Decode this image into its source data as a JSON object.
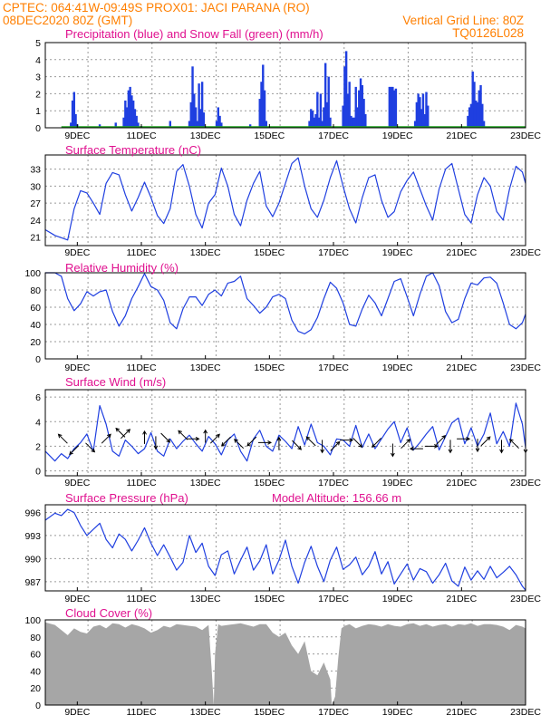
{
  "header": {
    "left_line1": "CPTEC:   064:41W-09:49S   PROX01: JACI PARANA (RO)",
    "left_line2": "08DEC2020 80Z (GMT)",
    "right_line2": "Vertical Grid Line: 80Z",
    "right_line3": "TQ0126L028"
  },
  "colors": {
    "header": "#ff7f00",
    "panel_title": "#e0108f",
    "series": "#1f3fe0",
    "snow": "#1aa01a",
    "cloud": "#a6a6a6",
    "grid": "#9a9a9a"
  },
  "x_dates": [
    "9DEC",
    "11DEC",
    "13DEC",
    "15DEC",
    "17DEC",
    "19DEC",
    "21DEC",
    "23DEC"
  ],
  "x_date_days": [
    9,
    11,
    13,
    15,
    17,
    19,
    21,
    23
  ],
  "chart_data": [
    {
      "type": "bar",
      "title": "Precipitation (blue) and Snow Fall (green) (mm/h)",
      "ylim": [
        0,
        5
      ],
      "yticks": [
        0,
        1,
        2,
        3,
        4,
        5
      ],
      "series": [
        {
          "name": "Precipitation",
          "x": [
            8.8,
            8.85,
            8.9,
            8.95,
            9.0,
            9.7,
            10.2,
            10.45,
            10.5,
            10.55,
            10.6,
            10.65,
            10.7,
            10.75,
            10.8,
            10.85,
            10.9,
            11.0,
            11.9,
            12.5,
            12.55,
            12.6,
            12.65,
            12.7,
            12.75,
            12.8,
            12.85,
            12.9,
            12.95,
            13.35,
            13.4,
            13.45,
            13.5,
            14.4,
            14.7,
            14.75,
            14.8,
            14.85,
            14.9,
            16.25,
            16.3,
            16.35,
            16.4,
            16.45,
            16.5,
            16.55,
            16.6,
            16.65,
            16.7,
            16.75,
            16.8,
            16.85,
            16.9,
            17.3,
            17.35,
            17.4,
            17.45,
            17.5,
            17.55,
            17.6,
            17.65,
            17.7,
            17.75,
            17.8,
            17.85,
            17.9,
            17.95,
            18.0,
            18.75,
            18.8,
            18.85,
            18.9,
            18.95,
            19.55,
            19.6,
            19.65,
            19.7,
            19.75,
            19.8,
            19.85,
            19.9,
            19.95,
            21.2,
            21.25,
            21.3,
            21.35,
            21.4,
            21.45,
            21.5,
            21.55,
            21.6,
            21.65,
            21.7
          ],
          "values": [
            0.3,
            1.6,
            2.1,
            0.8,
            0.2,
            0.2,
            0.3,
            0.6,
            1.6,
            1.2,
            2.2,
            2.4,
            1.9,
            1.6,
            1.1,
            0.7,
            0.3,
            0.1,
            0.4,
            0.4,
            1.5,
            3.6,
            2.0,
            1.2,
            0.4,
            2.6,
            1.1,
            2.7,
            0.9,
            0.4,
            1.2,
            0.7,
            0.3,
            0.2,
            1.7,
            2.7,
            3.7,
            2.2,
            0.4,
            0.4,
            1.1,
            1.0,
            0.6,
            0.8,
            2.1,
            0.6,
            2.0,
            0.4,
            1.2,
            3.8,
            1.5,
            3.0,
            0.6,
            1.3,
            3.6,
            4.5,
            2.0,
            2.7,
            0.7,
            0.6,
            0.6,
            2.4,
            1.2,
            2.2,
            2.9,
            2.5,
            1.7,
            0.8,
            2.4,
            2.4,
            2.4,
            2.2,
            2.3,
            0.4,
            1.5,
            2.0,
            1.8,
            1.1,
            2.0,
            0.8,
            2.1,
            1.3,
            0.7,
            1.2,
            1.4,
            3.3,
            2.7,
            1.6,
            1.5,
            2.2,
            2.5,
            1.4,
            0.4
          ]
        },
        {
          "name": "Snow Fall",
          "x": [
            8.5,
            23.0
          ],
          "values": [
            0,
            0
          ]
        }
      ]
    },
    {
      "type": "line",
      "title": "Surface Temperature (nC)",
      "ylim": [
        19.5,
        35.5
      ],
      "yticks": [
        21,
        24,
        27,
        30,
        33
      ],
      "x": [
        8.0,
        8.3,
        8.5,
        8.7,
        8.9,
        9.1,
        9.3,
        9.5,
        9.7,
        9.9,
        10.1,
        10.3,
        10.5,
        10.7,
        10.9,
        11.1,
        11.3,
        11.5,
        11.7,
        11.9,
        12.1,
        12.3,
        12.5,
        12.7,
        12.9,
        13.1,
        13.3,
        13.5,
        13.7,
        13.9,
        14.1,
        14.3,
        14.5,
        14.7,
        14.9,
        15.1,
        15.3,
        15.5,
        15.7,
        15.9,
        16.1,
        16.3,
        16.5,
        16.7,
        16.9,
        17.1,
        17.3,
        17.5,
        17.7,
        17.9,
        18.1,
        18.3,
        18.5,
        18.7,
        18.9,
        19.1,
        19.3,
        19.5,
        19.7,
        19.9,
        20.1,
        20.3,
        20.5,
        20.7,
        20.9,
        21.1,
        21.3,
        21.5,
        21.7,
        21.9,
        22.1,
        22.3,
        22.5,
        22.7,
        22.9,
        23.0
      ],
      "values": [
        22.3,
        21.3,
        20.9,
        20.5,
        26.0,
        29.2,
        28.8,
        27.0,
        25.0,
        30.5,
        32.4,
        32.0,
        28.5,
        25.6,
        28.0,
        30.7,
        28.0,
        24.8,
        23.4,
        26.0,
        32.6,
        33.8,
        30.0,
        25.0,
        22.6,
        27.0,
        28.5,
        33.2,
        30.0,
        25.0,
        23.0,
        27.5,
        30.5,
        32.6,
        26.5,
        24.6,
        27.0,
        30.5,
        34.0,
        35.0,
        30.0,
        26.0,
        24.5,
        27.5,
        31.5,
        34.5,
        30.0,
        26.0,
        23.5,
        28.0,
        31.5,
        32.0,
        27.5,
        24.5,
        25.5,
        29.0,
        31.0,
        32.5,
        29.5,
        26.5,
        24.0,
        29.5,
        33.0,
        34.0,
        29.5,
        25.0,
        23.5,
        28.5,
        31.5,
        30.0,
        25.5,
        24.0,
        29.5,
        33.5,
        32.5,
        30.5
      ]
    },
    {
      "type": "line",
      "title": "Relative Humidity (%)",
      "ylim": [
        0,
        100
      ],
      "yticks": [
        0,
        20,
        40,
        60,
        80,
        100
      ],
      "x": [
        8.0,
        8.3,
        8.5,
        8.7,
        8.9,
        9.1,
        9.3,
        9.5,
        9.7,
        9.9,
        10.1,
        10.3,
        10.5,
        10.7,
        10.9,
        11.1,
        11.3,
        11.5,
        11.7,
        11.9,
        12.1,
        12.3,
        12.5,
        12.7,
        12.9,
        13.1,
        13.3,
        13.5,
        13.7,
        13.9,
        14.1,
        14.3,
        14.5,
        14.7,
        14.9,
        15.1,
        15.3,
        15.5,
        15.7,
        15.9,
        16.1,
        16.3,
        16.5,
        16.7,
        16.9,
        17.1,
        17.3,
        17.5,
        17.7,
        17.9,
        18.1,
        18.3,
        18.5,
        18.7,
        18.9,
        19.1,
        19.3,
        19.5,
        19.7,
        19.9,
        20.1,
        20.3,
        20.5,
        20.7,
        20.9,
        21.1,
        21.3,
        21.5,
        21.7,
        21.9,
        22.1,
        22.3,
        22.5,
        22.7,
        22.9,
        23.0
      ],
      "values": [
        100,
        100,
        96,
        70,
        56,
        64,
        78,
        73,
        78,
        80,
        55,
        38,
        50,
        70,
        84,
        99,
        84,
        80,
        68,
        42,
        35,
        58,
        72,
        72,
        62,
        75,
        80,
        73,
        88,
        90,
        96,
        70,
        62,
        53,
        60,
        72,
        75,
        70,
        45,
        32,
        29,
        34,
        48,
        70,
        89,
        82,
        65,
        40,
        38,
        58,
        74,
        65,
        50,
        70,
        90,
        93,
        72,
        50,
        75,
        96,
        100,
        85,
        55,
        42,
        46,
        70,
        88,
        86,
        94,
        95,
        88,
        65,
        40,
        35,
        42,
        52
      ]
    },
    {
      "type": "line",
      "title": "Surface Wind (m/s)",
      "ylim": [
        -0.4,
        6.6
      ],
      "yticks": [
        0,
        2,
        4,
        6
      ],
      "x": [
        8.0,
        8.3,
        8.5,
        8.7,
        8.9,
        9.1,
        9.3,
        9.5,
        9.7,
        9.9,
        10.1,
        10.3,
        10.5,
        10.7,
        10.9,
        11.1,
        11.3,
        11.5,
        11.7,
        11.9,
        12.1,
        12.3,
        12.5,
        12.7,
        12.9,
        13.1,
        13.3,
        13.5,
        13.7,
        13.9,
        14.1,
        14.3,
        14.5,
        14.7,
        14.9,
        15.1,
        15.3,
        15.5,
        15.7,
        15.9,
        16.1,
        16.3,
        16.5,
        16.7,
        16.9,
        17.1,
        17.3,
        17.5,
        17.7,
        17.9,
        18.1,
        18.3,
        18.5,
        18.7,
        18.9,
        19.1,
        19.3,
        19.5,
        19.7,
        19.9,
        20.1,
        20.3,
        20.5,
        20.7,
        20.9,
        21.1,
        21.3,
        21.5,
        21.7,
        21.9,
        22.1,
        22.3,
        22.5,
        22.7,
        22.9,
        23.0
      ],
      "values": [
        1.6,
        0.8,
        1.4,
        1.0,
        1.8,
        2.3,
        3.0,
        1.6,
        5.3,
        3.8,
        1.6,
        1.2,
        2.5,
        2.0,
        1.4,
        1.8,
        3.1,
        1.6,
        1.2,
        2.6,
        1.8,
        2.4,
        2.9,
        2.2,
        1.6,
        2.8,
        2.2,
        1.3,
        2.5,
        3.0,
        1.6,
        0.8,
        2.6,
        3.3,
        2.0,
        1.6,
        2.9,
        2.4,
        1.8,
        3.6,
        2.1,
        3.8,
        2.3,
        2.0,
        1.3,
        2.6,
        2.5,
        2.0,
        3.7,
        1.9,
        3.0,
        1.8,
        2.6,
        3.4,
        4.0,
        2.3,
        3.5,
        1.7,
        2.3,
        3.0,
        3.6,
        1.7,
        2.8,
        3.9,
        4.3,
        2.2,
        3.5,
        2.0,
        3.0,
        4.7,
        2.2,
        3.2,
        2.0,
        5.5,
        3.8,
        1.9
      ]
    },
    {
      "type": "line",
      "title": "Surface Pressure (hPa)",
      "annotation": "Model Altitude: 156.66 m",
      "ylim": [
        985.8,
        997.0
      ],
      "yticks": [
        987,
        990,
        993,
        996
      ],
      "x": [
        8.0,
        8.3,
        8.5,
        8.7,
        8.9,
        9.1,
        9.3,
        9.5,
        9.7,
        9.9,
        10.1,
        10.3,
        10.5,
        10.7,
        10.9,
        11.1,
        11.3,
        11.5,
        11.7,
        11.9,
        12.1,
        12.3,
        12.5,
        12.7,
        12.9,
        13.1,
        13.3,
        13.5,
        13.7,
        13.9,
        14.1,
        14.3,
        14.5,
        14.7,
        14.9,
        15.1,
        15.3,
        15.5,
        15.7,
        15.9,
        16.1,
        16.3,
        16.5,
        16.7,
        16.9,
        17.1,
        17.3,
        17.5,
        17.7,
        17.9,
        18.1,
        18.3,
        18.5,
        18.7,
        18.9,
        19.1,
        19.3,
        19.5,
        19.7,
        19.9,
        20.1,
        20.3,
        20.5,
        20.7,
        20.9,
        21.1,
        21.3,
        21.5,
        21.7,
        21.9,
        22.1,
        22.3,
        22.5,
        22.7,
        22.9,
        23.0
      ],
      "values": [
        995.0,
        995.9,
        995.6,
        996.4,
        996.0,
        994.3,
        993.0,
        993.8,
        994.6,
        992.5,
        991.4,
        993.2,
        992.5,
        991.0,
        992.4,
        994.0,
        992.0,
        990.4,
        991.8,
        990.2,
        988.5,
        989.5,
        993.0,
        990.8,
        992.0,
        989.0,
        987.8,
        990.5,
        991.0,
        988.0,
        989.8,
        991.5,
        988.5,
        989.7,
        991.8,
        988.0,
        989.8,
        992.4,
        989.0,
        986.8,
        989.5,
        991.6,
        989.0,
        987.0,
        989.8,
        991.5,
        988.6,
        989.2,
        990.2,
        987.9,
        989.0,
        990.9,
        988.0,
        989.6,
        986.7,
        988.0,
        989.3,
        987.2,
        988.7,
        988.3,
        986.8,
        987.9,
        989.4,
        987.1,
        986.4,
        988.9,
        987.2,
        988.4,
        987.3,
        989.0,
        987.5,
        988.2,
        989.0,
        987.9,
        986.4,
        985.9
      ]
    },
    {
      "type": "area",
      "title": "Cloud Cover (%)",
      "ylim": [
        0,
        100
      ],
      "yticks": [
        0,
        20,
        40,
        60,
        80,
        100
      ],
      "x": [
        8.0,
        8.3,
        8.5,
        8.7,
        8.9,
        9.1,
        9.3,
        9.5,
        9.7,
        9.9,
        10.1,
        10.3,
        10.5,
        10.7,
        10.9,
        11.1,
        11.3,
        11.5,
        11.7,
        11.9,
        12.1,
        12.3,
        12.5,
        12.7,
        12.9,
        13.1,
        13.2,
        13.26,
        13.3,
        13.4,
        13.5,
        13.7,
        13.9,
        14.1,
        14.3,
        14.5,
        14.7,
        14.9,
        15.1,
        15.3,
        15.5,
        15.7,
        15.9,
        16.1,
        16.3,
        16.5,
        16.7,
        16.8,
        16.9,
        16.95,
        17.05,
        17.15,
        17.25,
        17.35,
        17.5,
        17.7,
        17.9,
        18.1,
        18.3,
        18.5,
        18.7,
        18.9,
        19.1,
        19.3,
        19.5,
        19.7,
        19.9,
        20.1,
        20.3,
        20.5,
        20.7,
        20.9,
        21.1,
        21.3,
        21.5,
        21.7,
        21.9,
        22.1,
        22.3,
        22.5,
        22.7,
        22.9,
        23.0
      ],
      "values": [
        97,
        94,
        88,
        82,
        90,
        86,
        84,
        92,
        94,
        90,
        96,
        95,
        91,
        95,
        93,
        90,
        85,
        88,
        93,
        91,
        95,
        94,
        93,
        92,
        88,
        94,
        40,
        0,
        60,
        95,
        93,
        94,
        95,
        96,
        94,
        92,
        95,
        95,
        85,
        80,
        85,
        70,
        60,
        75,
        40,
        35,
        50,
        40,
        30,
        0,
        10,
        55,
        90,
        93,
        95,
        90,
        93,
        95,
        94,
        92,
        95,
        93,
        92,
        95,
        96,
        93,
        95,
        92,
        94,
        95,
        92,
        95,
        94,
        96,
        93,
        95,
        95,
        94,
        92,
        88,
        94,
        92,
        90
      ]
    }
  ]
}
